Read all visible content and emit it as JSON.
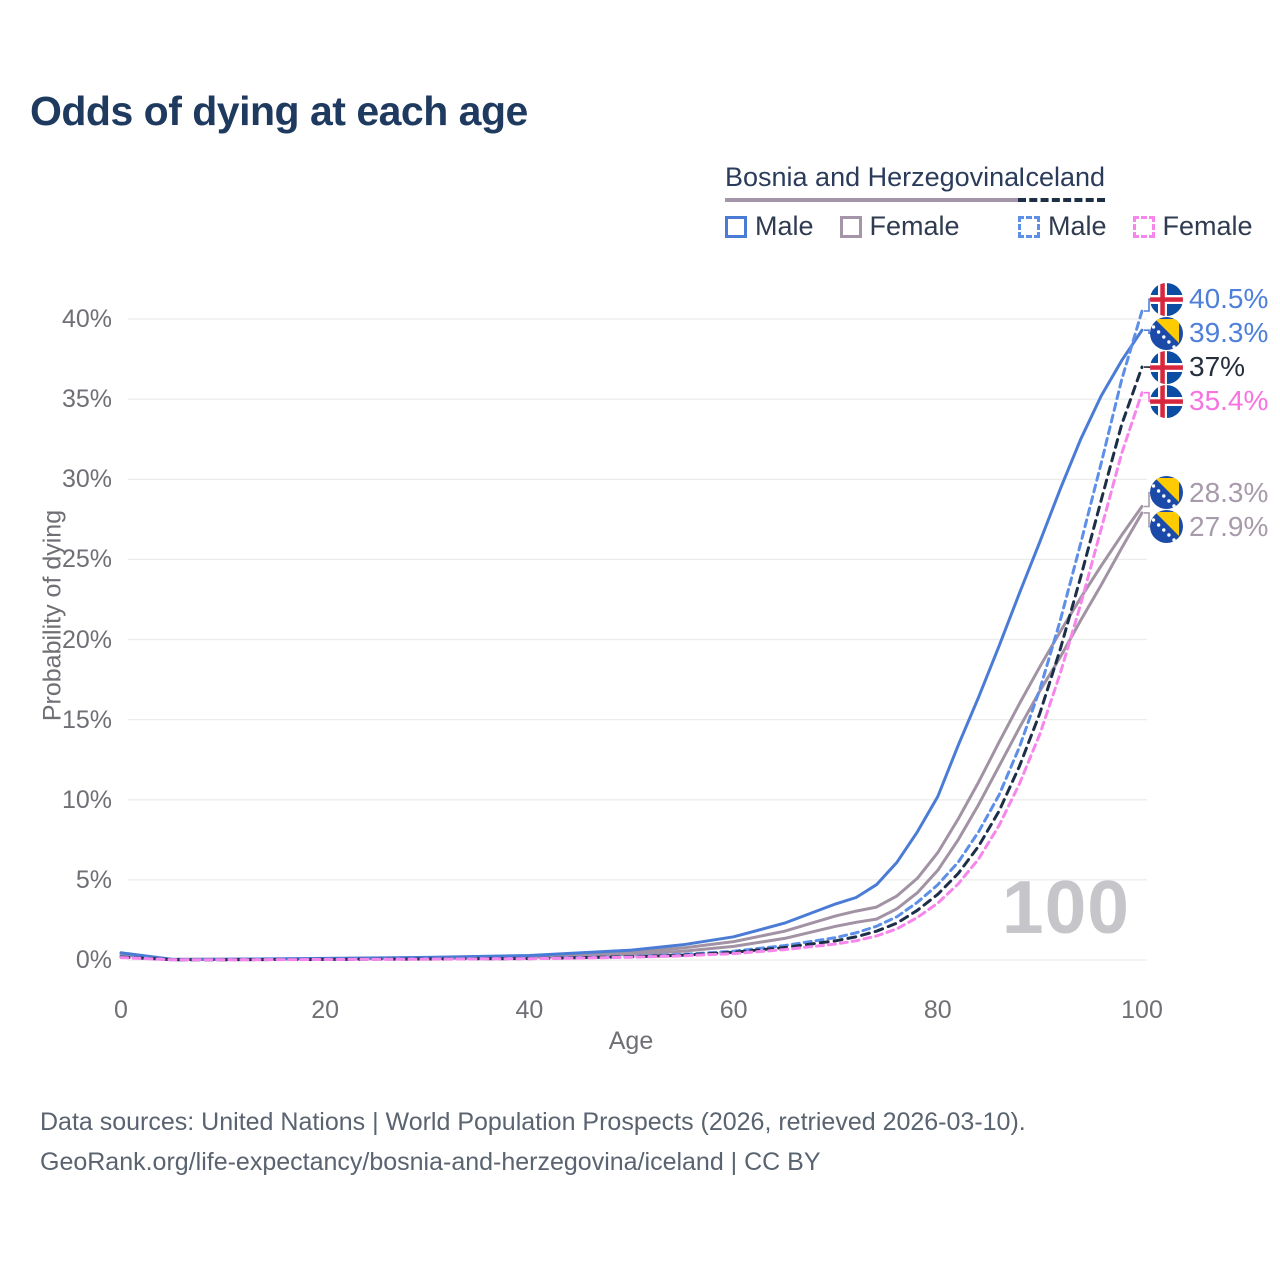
{
  "title": "Odds of dying at each age",
  "legend": {
    "groups": [
      {
        "country": "Bosnia and Herzegovina",
        "underline_color": "#a495a8",
        "underline_style": "solid",
        "items": [
          {
            "label": "Male",
            "color": "#4a7cd6",
            "style": "solid"
          },
          {
            "label": "Female",
            "color": "#a495a8",
            "style": "solid"
          }
        ]
      },
      {
        "country": "Iceland",
        "underline_color": "#1d2f47",
        "underline_style": "dashed",
        "items": [
          {
            "label": "Male",
            "color": "#5d8fe8",
            "style": "dashed"
          },
          {
            "label": "Female",
            "color": "#f786ec",
            "style": "dashed"
          }
        ]
      }
    ]
  },
  "chart_data": {
    "type": "line",
    "title": "Odds of dying at each age",
    "x_axis": {
      "label": "Age",
      "range": [
        0,
        100
      ],
      "ticks": [
        0,
        20,
        40,
        60,
        80,
        100
      ]
    },
    "y_axis": {
      "label": "Probability of dying",
      "unit": "%",
      "range": [
        0,
        40
      ],
      "tick_values": [
        0,
        5,
        10,
        15,
        20,
        25,
        30,
        35,
        40
      ],
      "tick_labels": [
        "0%",
        "5%",
        "10%",
        "15%",
        "20%",
        "25%",
        "30%",
        "35%",
        "40%"
      ]
    },
    "grid": "horizontal",
    "watermark": "100",
    "ages": [
      0,
      5,
      10,
      20,
      30,
      40,
      50,
      55,
      60,
      65,
      70,
      72,
      74,
      76,
      78,
      80,
      82,
      84,
      86,
      88,
      90,
      92,
      94,
      96,
      98,
      100
    ],
    "series": [
      {
        "id": "isl-male",
        "name": "Iceland — Male",
        "country": "Iceland",
        "flag": "iceland",
        "color": "#5d8fe8",
        "dash": "7 5",
        "end_label": "40.5%",
        "end_value": 40.5,
        "label_color": "#4e7fd9",
        "values": [
          0.2,
          0.02,
          0.02,
          0.05,
          0.07,
          0.1,
          0.22,
          0.35,
          0.55,
          0.9,
          1.4,
          1.7,
          2.1,
          2.7,
          3.6,
          4.7,
          6.1,
          8.0,
          10.3,
          13.3,
          16.9,
          21.2,
          26.0,
          31.0,
          36.2,
          40.5
        ]
      },
      {
        "id": "bih-male",
        "name": "Bosnia and Herzegovina — Male",
        "country": "Bosnia and Herzegovina",
        "flag": "bosnia",
        "color": "#4a7cd6",
        "dash": null,
        "end_label": "39.3%",
        "end_value": 39.3,
        "label_color": "#4e7fd9",
        "values": [
          0.45,
          0.04,
          0.05,
          0.1,
          0.16,
          0.28,
          0.62,
          0.95,
          1.45,
          2.3,
          3.5,
          3.9,
          4.7,
          6.1,
          8.0,
          10.2,
          13.4,
          16.4,
          19.6,
          22.9,
          26.1,
          29.4,
          32.5,
          35.2,
          37.4,
          39.3
        ]
      },
      {
        "id": "isl-both",
        "name": "Iceland — Both sexes",
        "country": "Iceland",
        "flag": "iceland",
        "color": "#1d2f47",
        "dash": "8 6",
        "end_label": "37%",
        "end_value": 37,
        "label_color": "#242e3c",
        "values": [
          0.18,
          0.018,
          0.018,
          0.04,
          0.06,
          0.09,
          0.2,
          0.3,
          0.48,
          0.78,
          1.2,
          1.45,
          1.8,
          2.3,
          3.1,
          4.1,
          5.4,
          7.1,
          9.3,
          12.1,
          15.4,
          19.4,
          23.9,
          28.7,
          33.4,
          37.0
        ]
      },
      {
        "id": "isl-female",
        "name": "Iceland — Female",
        "country": "Iceland",
        "flag": "iceland",
        "color": "#f786ec",
        "dash": "7 5",
        "end_label": "35.4%",
        "end_value": 35.4,
        "label_color": "#f673e0",
        "values": [
          0.15,
          0.015,
          0.015,
          0.03,
          0.05,
          0.08,
          0.17,
          0.26,
          0.4,
          0.65,
          1.0,
          1.2,
          1.5,
          1.95,
          2.65,
          3.55,
          4.75,
          6.3,
          8.4,
          11.0,
          14.1,
          17.9,
          22.2,
          26.9,
          31.6,
          35.4
        ]
      },
      {
        "id": "bih-both",
        "name": "Bosnia and Herzegovina — Both sexes",
        "country": "Bosnia and Herzegovina",
        "flag": "bosnia",
        "color": "#a192a4",
        "dash": null,
        "end_label": "28.3%",
        "end_value": 28.3,
        "label_color": "#a79aab",
        "values": [
          0.4,
          0.035,
          0.045,
          0.08,
          0.13,
          0.22,
          0.5,
          0.75,
          1.15,
          1.8,
          2.75,
          3.05,
          3.3,
          4.0,
          5.1,
          6.7,
          8.8,
          11.1,
          13.6,
          16.0,
          18.3,
          20.5,
          22.6,
          24.6,
          26.5,
          28.3
        ]
      },
      {
        "id": "bih-female",
        "name": "Bosnia and Herzegovina — Female",
        "country": "Bosnia and Herzegovina",
        "flag": "bosnia",
        "color": "#a192a4",
        "dash": null,
        "end_label": "27.9%",
        "end_value": 27.9,
        "label_color": "#a79aab",
        "values": [
          0.35,
          0.03,
          0.04,
          0.06,
          0.09,
          0.16,
          0.36,
          0.55,
          0.85,
          1.35,
          2.1,
          2.35,
          2.55,
          3.2,
          4.2,
          5.6,
          7.5,
          9.7,
          12.1,
          14.5,
          16.8,
          18.9,
          21.2,
          23.4,
          25.7,
          27.9
        ]
      }
    ]
  },
  "footer": {
    "line1": "Data sources: United Nations | World Population Prospects (2026, retrieved 2026-03-10).",
    "line2": "GeoRank.org/life-expectancy/bosnia-and-herzegovina/iceland | CC BY"
  },
  "style": {
    "background": "#ffffff",
    "title_color": "#1f3a5f",
    "grid_color": "#ececec",
    "tick_color": "#6f6f75",
    "footer_color": "#5a6370",
    "watermark_color": "#c6c6ca"
  },
  "flags": {
    "iceland": {
      "blue": "#0b4da2",
      "white": "#ffffff",
      "red": "#d7263d"
    },
    "bosnia": {
      "blue": "#1c4aa8",
      "yellow": "#fecb00",
      "star": "#ffffff"
    }
  }
}
